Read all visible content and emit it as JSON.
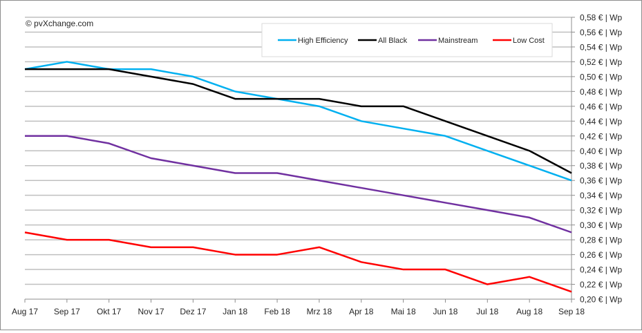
{
  "chart_data": {
    "type": "line",
    "copyright": "© pvXchange.com",
    "categories": [
      "Aug 17",
      "Sep 17",
      "Okt 17",
      "Nov 17",
      "Dez 17",
      "Jan 18",
      "Feb 18",
      "Mrz 18",
      "Apr 18",
      "Mai 18",
      "Jun 18",
      "Jul 18",
      "Aug 18",
      "Sep 18"
    ],
    "ylim": [
      0.2,
      0.58
    ],
    "ystep": 0.02,
    "ytick_labels": [
      "0,20 € | Wp",
      "0,22 € | Wp",
      "0,24 € | Wp",
      "0,26 € | Wp",
      "0,28 € | Wp",
      "0,30 € | Wp",
      "0,32 € | Wp",
      "0,34 € | Wp",
      "0,36 € | Wp",
      "0,38 € | Wp",
      "0,40 € | Wp",
      "0,42 € | Wp",
      "0,44 € | Wp",
      "0,46 € | Wp",
      "0,48 € | Wp",
      "0,50 € | Wp",
      "0,52 € | Wp",
      "0,54 € | Wp",
      "0,56 € | Wp",
      "0,58 € | Wp"
    ],
    "yaxis_position": "right",
    "grid": true,
    "legend_position": "top-right",
    "series": [
      {
        "name": "High Efficiency",
        "color": "#00b0f0",
        "values": [
          0.51,
          0.52,
          0.51,
          0.51,
          0.5,
          0.48,
          0.47,
          0.46,
          0.44,
          0.43,
          0.42,
          0.4,
          0.38,
          0.36
        ]
      },
      {
        "name": "All Black",
        "color": "#000000",
        "values": [
          0.51,
          0.51,
          0.51,
          0.5,
          0.49,
          0.47,
          0.47,
          0.47,
          0.46,
          0.46,
          0.44,
          0.42,
          0.4,
          0.37
        ]
      },
      {
        "name": "Mainstream",
        "color": "#7030a0",
        "values": [
          0.42,
          0.42,
          0.41,
          0.39,
          0.38,
          0.37,
          0.37,
          0.36,
          0.35,
          0.34,
          0.33,
          0.32,
          0.31,
          0.29
        ]
      },
      {
        "name": "Low Cost",
        "color": "#ff0000",
        "values": [
          0.29,
          0.28,
          0.28,
          0.27,
          0.27,
          0.26,
          0.26,
          0.27,
          0.25,
          0.24,
          0.24,
          0.22,
          0.23,
          0.21
        ]
      }
    ]
  }
}
